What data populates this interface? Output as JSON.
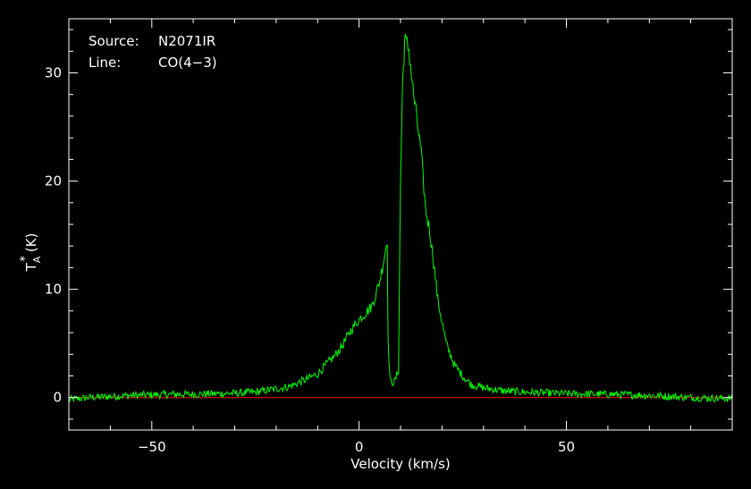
{
  "chart_data": {
    "type": "line",
    "xlabel": "Velocity (km/s)",
    "ylabel": {
      "main": "T",
      "superscript": "*",
      "subscript": "A",
      "unit": "(K)"
    },
    "xlim": [
      -70,
      90
    ],
    "ylim": [
      -3,
      35
    ],
    "xticks": [
      -50,
      0,
      50
    ],
    "xtick_labels": [
      "−50",
      "0",
      "50"
    ],
    "yticks": [
      0,
      10,
      20,
      30
    ],
    "ytick_labels": [
      "0",
      "10",
      "20",
      "30"
    ],
    "grid": false,
    "annotations": {
      "source_label": "Source:",
      "source_value": "N2071IR",
      "line_label": "Line:",
      "line_value": "CO(4−3)"
    },
    "baseline": {
      "y": 0,
      "x_range": [
        -70,
        90
      ],
      "color": "#ff0000"
    },
    "series": [
      {
        "color": "#00ff00",
        "points": [
          [
            -70,
            -0.2
          ],
          [
            -65,
            0.0
          ],
          [
            -60,
            0.1
          ],
          [
            -55,
            0.2
          ],
          [
            -50,
            0.25
          ],
          [
            -45,
            0.3
          ],
          [
            -40,
            0.3
          ],
          [
            -35,
            0.35
          ],
          [
            -30,
            0.4
          ],
          [
            -25,
            0.5
          ],
          [
            -20,
            0.8
          ],
          [
            -17,
            1.0
          ],
          [
            -15,
            1.3
          ],
          [
            -12,
            1.8
          ],
          [
            -10,
            2.2
          ],
          [
            -8,
            3.0
          ],
          [
            -6,
            3.8
          ],
          [
            -4,
            4.8
          ],
          [
            -2,
            6.2
          ],
          [
            0,
            7.2
          ],
          [
            1,
            7.6
          ],
          [
            2,
            8.0
          ],
          [
            3,
            8.4
          ],
          [
            4,
            9.5
          ],
          [
            5,
            10.8
          ],
          [
            6,
            12.8
          ],
          [
            6.8,
            14.6
          ],
          [
            7.0,
            5.0
          ],
          [
            7.5,
            1.5
          ],
          [
            8.5,
            1.4
          ],
          [
            9.5,
            2.5
          ],
          [
            10.0,
            20.0
          ],
          [
            10.5,
            29.0
          ],
          [
            11.0,
            33.0
          ],
          [
            12.0,
            32.2
          ],
          [
            13.0,
            28.5
          ],
          [
            14.0,
            25.5
          ],
          [
            15.0,
            22.5
          ],
          [
            16.0,
            17.5
          ],
          [
            17.0,
            15.5
          ],
          [
            18.0,
            12.5
          ],
          [
            19.0,
            9.0
          ],
          [
            20.0,
            7.0
          ],
          [
            21.0,
            5.0
          ],
          [
            22.0,
            4.0
          ],
          [
            23.0,
            3.0
          ],
          [
            25.0,
            2.0
          ],
          [
            27.0,
            1.2
          ],
          [
            30.0,
            0.9
          ],
          [
            35.0,
            0.6
          ],
          [
            40.0,
            0.5
          ],
          [
            50.0,
            0.35
          ],
          [
            60.0,
            0.3
          ],
          [
            70.0,
            0.2
          ],
          [
            80.0,
            0.0
          ],
          [
            90.0,
            -0.1
          ]
        ]
      }
    ]
  },
  "colors": {
    "background": "#000000",
    "frame": "#ffffff",
    "spectrum": "#00ff00",
    "baseline": "#ff0000"
  }
}
